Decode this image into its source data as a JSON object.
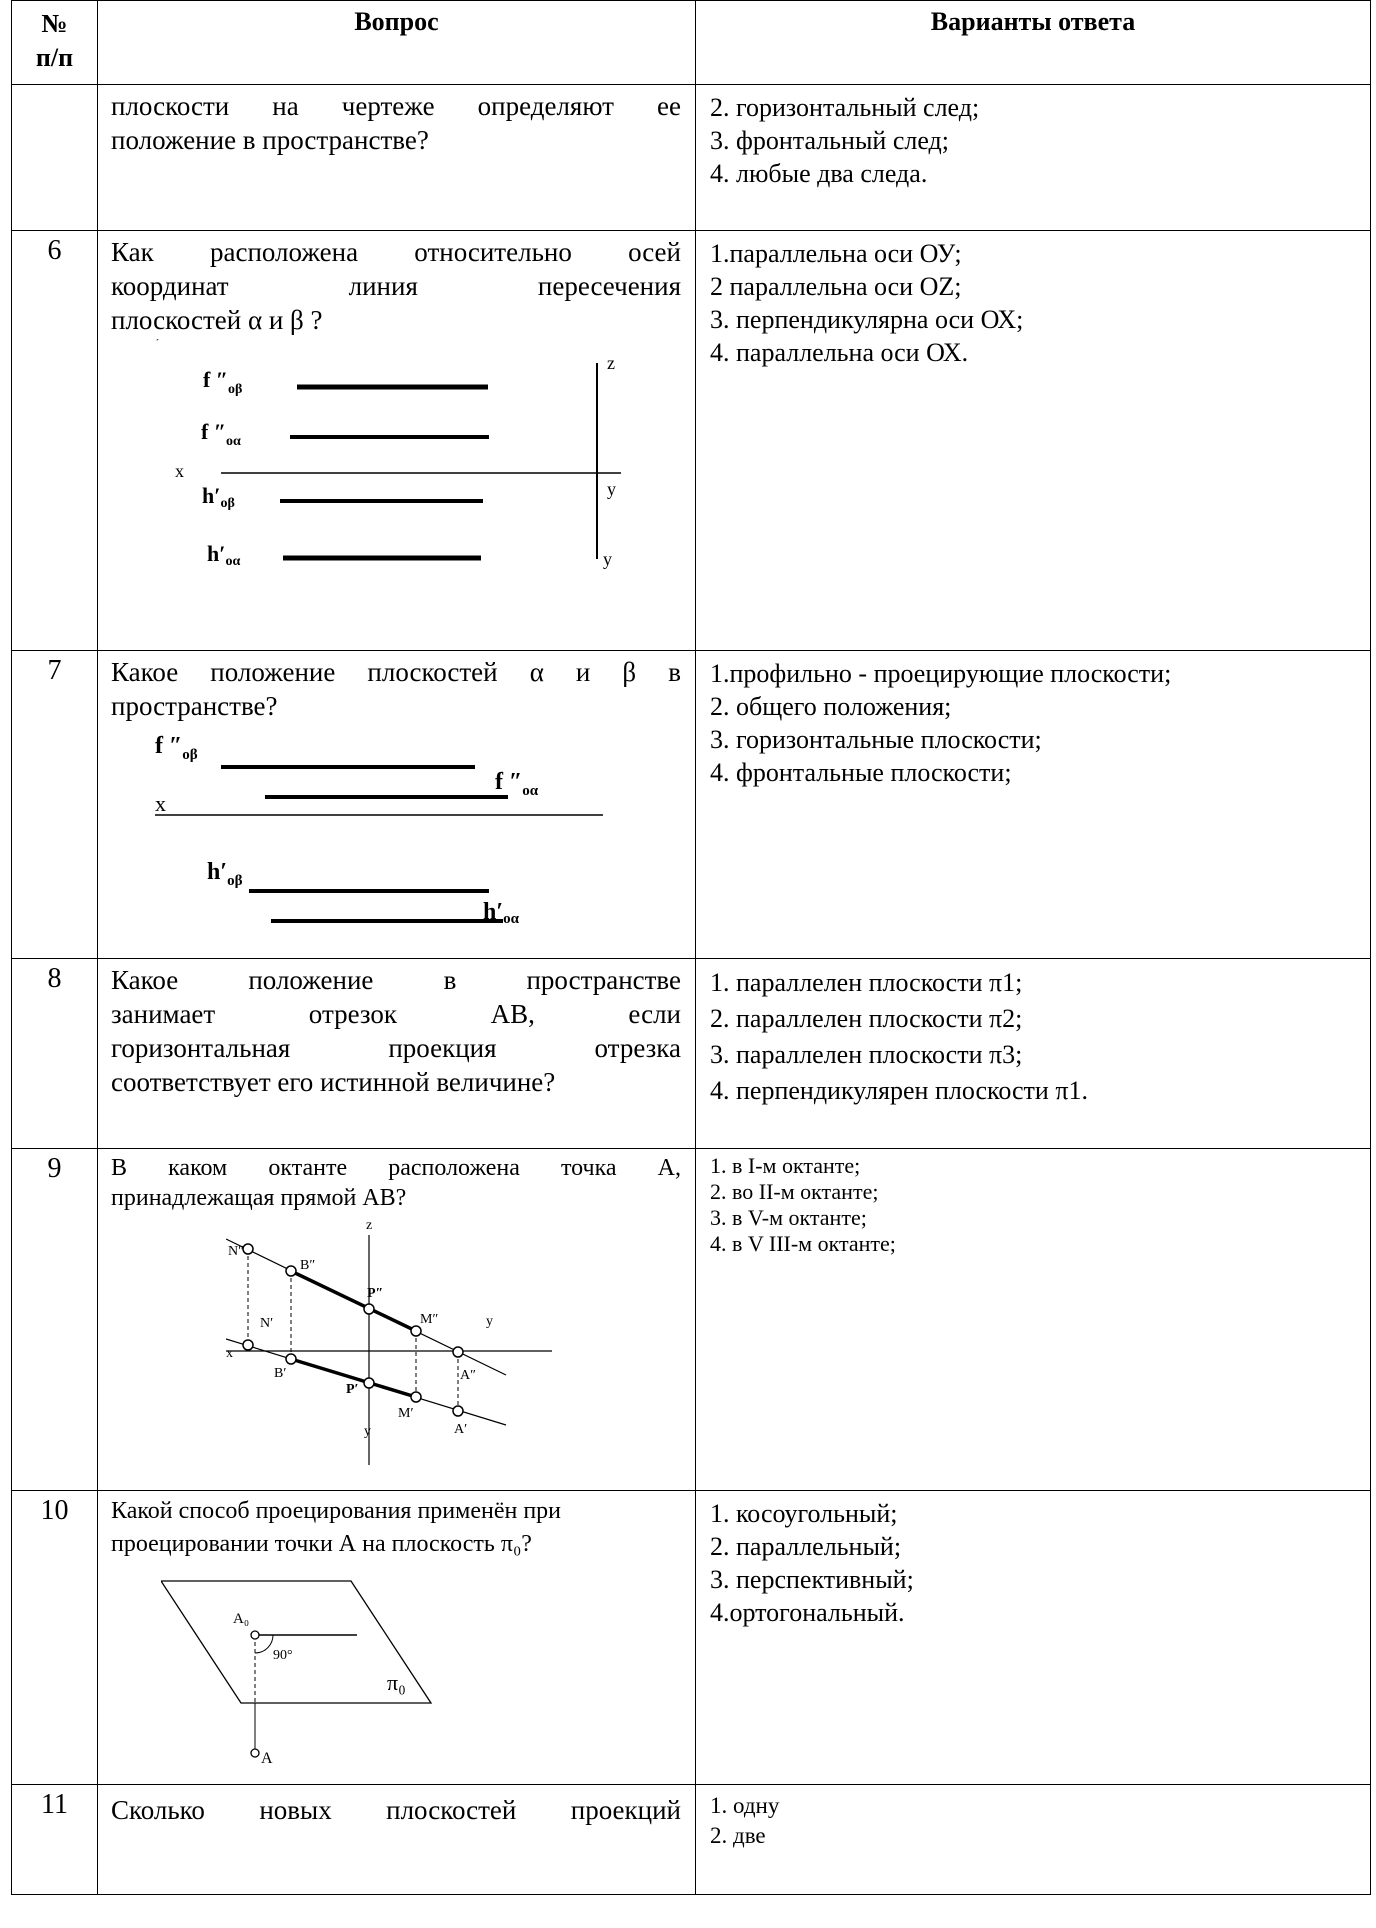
{
  "header": {
    "num": "№\nп/п",
    "num_line1": "№",
    "num_line2": "п/п",
    "question": "Вопрос",
    "answers": "Варианты ответа"
  },
  "rows": [
    {
      "num": "",
      "question_lines": [
        "плоскости на чертеже определяют ее",
        "положение в пространстве?"
      ],
      "answers": [
        "2. горизонтальный след;",
        "3. фронтальный след;",
        "4. любые два следа."
      ]
    },
    {
      "num": "6",
      "question_lines": [
        "Как расположена относительно осей",
        "координат линия пересечения",
        "плоскостей α и β ?"
      ],
      "answers": [
        "1.параллельна оси ОУ;",
        "2 параллельна оси OZ;",
        "3. перпендикулярна оси ОХ;",
        "4. параллельна оси ОХ."
      ],
      "figure_labels": {
        "f_beta": "f ″",
        "f_beta_sub": "οβ",
        "f_alpha": "f ″",
        "f_alpha_sub": "οα",
        "h_beta": "h′",
        "h_beta_sub": "οβ",
        "h_alpha": "h′",
        "h_alpha_sub": "οα",
        "x": "x",
        "z": "z",
        "y1": "y",
        "y2": "y"
      }
    },
    {
      "num": "7",
      "question_lines": [
        "Какое положение плоскостей α и β в",
        "пространстве?"
      ],
      "answers": [
        "1.профильно - проецирующие плоскости;",
        "2. общего положения;",
        "3. горизонтальные плоскости;",
        "4. фронтальные плоскости;"
      ],
      "figure_labels": {
        "f_beta": "f ″",
        "f_beta_sub": "οβ",
        "f_alpha": "f ″",
        "f_alpha_sub": "οα",
        "x": "x",
        "h_beta": "h′",
        "h_beta_sub": "οβ",
        "h_alpha": "h′",
        "h_alpha_sub": "οα"
      }
    },
    {
      "num": "8",
      "question_lines": [
        "Какое положение в пространстве",
        "занимает отрезок АВ, если",
        "горизонтальная проекция отрезка",
        "соответствует его истинной величине?"
      ],
      "answers": [
        "1. параллелен плоскости π1;",
        "2. параллелен плоскости π2;",
        "3. параллелен плоскости π3;",
        "4. перпендикулярен плоскости π1."
      ]
    },
    {
      "num": "9",
      "question_lines": [
        "В каком октанте расположена точка А,",
        "принадлежащая прямой АВ?"
      ],
      "answers": [
        "1. в I-м октанте;",
        "2. во II-м октанте;",
        "3. в V-м октанте;",
        "4. в V III-м октанте;"
      ],
      "figure_labels": {
        "N2": "N″",
        "B2": "B″",
        "z": "z",
        "P2": "P″",
        "M2": "M″",
        "y_top": "y",
        "N1": "N′",
        "x": "x",
        "A2": "A″",
        "B1": "B′",
        "P1": "P′",
        "M1": "M′",
        "y_bottom": "y",
        "A1": "A′"
      }
    },
    {
      "num": "10",
      "question_lines": [
        "Какой способ проецирования применён при",
        "проецировании точки А на плоскость π₀?"
      ],
      "answers": [
        "1. косоугольный;",
        "2. параллельный;",
        "3. перспективный;",
        "4.ортогональный."
      ],
      "figure_labels": {
        "A0": "A₀",
        "angle": "90°",
        "pi0": "π₀",
        "A": "A"
      }
    },
    {
      "num": "11",
      "question_lines": [
        "Сколько новых плоскостей проекций"
      ],
      "answers": [
        "1. одну",
        "2. две"
      ]
    }
  ]
}
